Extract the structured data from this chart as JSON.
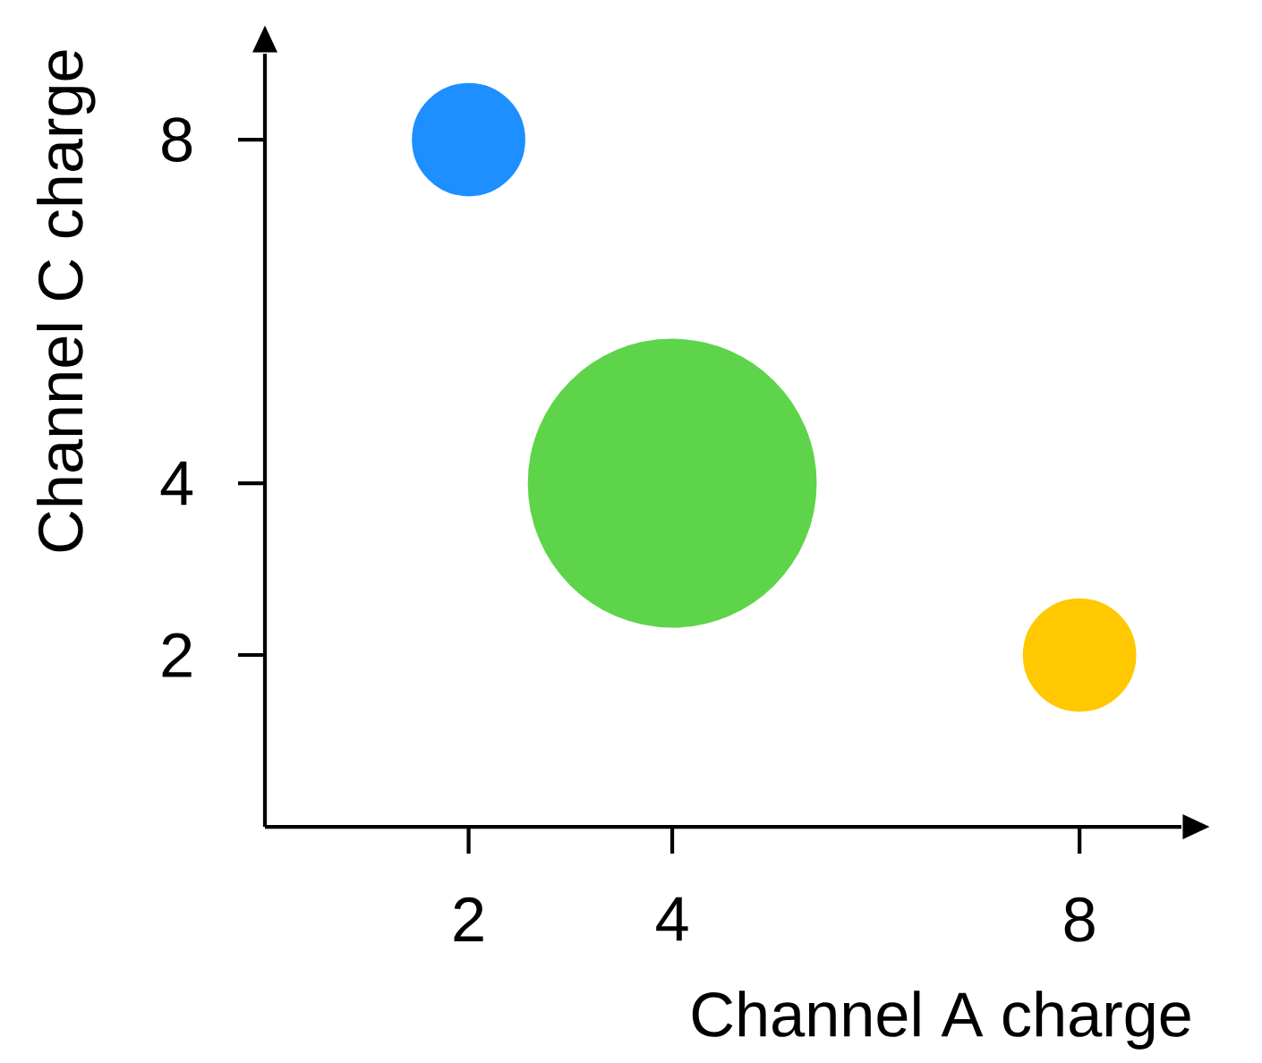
{
  "chart_data": {
    "type": "bubble",
    "x": [
      2,
      4,
      8
    ],
    "values": [
      8,
      4,
      2
    ],
    "sizes": [
      0.15,
      1,
      0.15
    ],
    "colors": [
      "#1e8fff",
      "#5ed44a",
      "#ffc800"
    ],
    "xlabel": "Channel A charge",
    "ylabel": "Channel C charge",
    "xlim": [
      0,
      9
    ],
    "ylim": [
      0,
      9
    ],
    "xticks": [
      2,
      4,
      8
    ],
    "yticks": [
      2,
      4,
      8
    ],
    "grid": false
  }
}
